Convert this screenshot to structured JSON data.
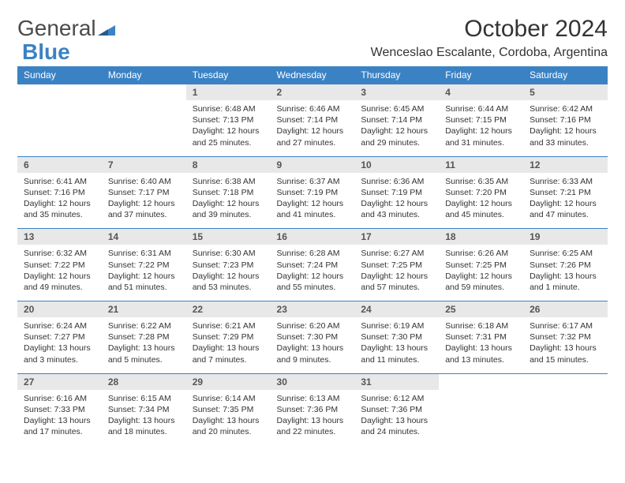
{
  "brand": {
    "text_general": "General",
    "text_blue": "Blue",
    "general_color": "#4a4a4a",
    "blue_color": "#3b82c4",
    "triangle_color": "#3b82c4"
  },
  "title": {
    "month_year": "October 2024",
    "location": "Wenceslao Escalante, Cordoba, Argentina"
  },
  "colors": {
    "header_bg": "#3b82c4",
    "header_text": "#ffffff",
    "daynum_bg": "#e8e8e8",
    "daynum_text": "#555555",
    "body_text": "#333333",
    "row_border": "#3b82c4",
    "page_bg": "#ffffff"
  },
  "weekday_headers": [
    "Sunday",
    "Monday",
    "Tuesday",
    "Wednesday",
    "Thursday",
    "Friday",
    "Saturday"
  ],
  "weeks": [
    [
      {
        "day": "",
        "sunrise": "",
        "sunset": "",
        "daylight": ""
      },
      {
        "day": "",
        "sunrise": "",
        "sunset": "",
        "daylight": ""
      },
      {
        "day": "1",
        "sunrise": "Sunrise: 6:48 AM",
        "sunset": "Sunset: 7:13 PM",
        "daylight": "Daylight: 12 hours and 25 minutes."
      },
      {
        "day": "2",
        "sunrise": "Sunrise: 6:46 AM",
        "sunset": "Sunset: 7:14 PM",
        "daylight": "Daylight: 12 hours and 27 minutes."
      },
      {
        "day": "3",
        "sunrise": "Sunrise: 6:45 AM",
        "sunset": "Sunset: 7:14 PM",
        "daylight": "Daylight: 12 hours and 29 minutes."
      },
      {
        "day": "4",
        "sunrise": "Sunrise: 6:44 AM",
        "sunset": "Sunset: 7:15 PM",
        "daylight": "Daylight: 12 hours and 31 minutes."
      },
      {
        "day": "5",
        "sunrise": "Sunrise: 6:42 AM",
        "sunset": "Sunset: 7:16 PM",
        "daylight": "Daylight: 12 hours and 33 minutes."
      }
    ],
    [
      {
        "day": "6",
        "sunrise": "Sunrise: 6:41 AM",
        "sunset": "Sunset: 7:16 PM",
        "daylight": "Daylight: 12 hours and 35 minutes."
      },
      {
        "day": "7",
        "sunrise": "Sunrise: 6:40 AM",
        "sunset": "Sunset: 7:17 PM",
        "daylight": "Daylight: 12 hours and 37 minutes."
      },
      {
        "day": "8",
        "sunrise": "Sunrise: 6:38 AM",
        "sunset": "Sunset: 7:18 PM",
        "daylight": "Daylight: 12 hours and 39 minutes."
      },
      {
        "day": "9",
        "sunrise": "Sunrise: 6:37 AM",
        "sunset": "Sunset: 7:19 PM",
        "daylight": "Daylight: 12 hours and 41 minutes."
      },
      {
        "day": "10",
        "sunrise": "Sunrise: 6:36 AM",
        "sunset": "Sunset: 7:19 PM",
        "daylight": "Daylight: 12 hours and 43 minutes."
      },
      {
        "day": "11",
        "sunrise": "Sunrise: 6:35 AM",
        "sunset": "Sunset: 7:20 PM",
        "daylight": "Daylight: 12 hours and 45 minutes."
      },
      {
        "day": "12",
        "sunrise": "Sunrise: 6:33 AM",
        "sunset": "Sunset: 7:21 PM",
        "daylight": "Daylight: 12 hours and 47 minutes."
      }
    ],
    [
      {
        "day": "13",
        "sunrise": "Sunrise: 6:32 AM",
        "sunset": "Sunset: 7:22 PM",
        "daylight": "Daylight: 12 hours and 49 minutes."
      },
      {
        "day": "14",
        "sunrise": "Sunrise: 6:31 AM",
        "sunset": "Sunset: 7:22 PM",
        "daylight": "Daylight: 12 hours and 51 minutes."
      },
      {
        "day": "15",
        "sunrise": "Sunrise: 6:30 AM",
        "sunset": "Sunset: 7:23 PM",
        "daylight": "Daylight: 12 hours and 53 minutes."
      },
      {
        "day": "16",
        "sunrise": "Sunrise: 6:28 AM",
        "sunset": "Sunset: 7:24 PM",
        "daylight": "Daylight: 12 hours and 55 minutes."
      },
      {
        "day": "17",
        "sunrise": "Sunrise: 6:27 AM",
        "sunset": "Sunset: 7:25 PM",
        "daylight": "Daylight: 12 hours and 57 minutes."
      },
      {
        "day": "18",
        "sunrise": "Sunrise: 6:26 AM",
        "sunset": "Sunset: 7:25 PM",
        "daylight": "Daylight: 12 hours and 59 minutes."
      },
      {
        "day": "19",
        "sunrise": "Sunrise: 6:25 AM",
        "sunset": "Sunset: 7:26 PM",
        "daylight": "Daylight: 13 hours and 1 minute."
      }
    ],
    [
      {
        "day": "20",
        "sunrise": "Sunrise: 6:24 AM",
        "sunset": "Sunset: 7:27 PM",
        "daylight": "Daylight: 13 hours and 3 minutes."
      },
      {
        "day": "21",
        "sunrise": "Sunrise: 6:22 AM",
        "sunset": "Sunset: 7:28 PM",
        "daylight": "Daylight: 13 hours and 5 minutes."
      },
      {
        "day": "22",
        "sunrise": "Sunrise: 6:21 AM",
        "sunset": "Sunset: 7:29 PM",
        "daylight": "Daylight: 13 hours and 7 minutes."
      },
      {
        "day": "23",
        "sunrise": "Sunrise: 6:20 AM",
        "sunset": "Sunset: 7:30 PM",
        "daylight": "Daylight: 13 hours and 9 minutes."
      },
      {
        "day": "24",
        "sunrise": "Sunrise: 6:19 AM",
        "sunset": "Sunset: 7:30 PM",
        "daylight": "Daylight: 13 hours and 11 minutes."
      },
      {
        "day": "25",
        "sunrise": "Sunrise: 6:18 AM",
        "sunset": "Sunset: 7:31 PM",
        "daylight": "Daylight: 13 hours and 13 minutes."
      },
      {
        "day": "26",
        "sunrise": "Sunrise: 6:17 AM",
        "sunset": "Sunset: 7:32 PM",
        "daylight": "Daylight: 13 hours and 15 minutes."
      }
    ],
    [
      {
        "day": "27",
        "sunrise": "Sunrise: 6:16 AM",
        "sunset": "Sunset: 7:33 PM",
        "daylight": "Daylight: 13 hours and 17 minutes."
      },
      {
        "day": "28",
        "sunrise": "Sunrise: 6:15 AM",
        "sunset": "Sunset: 7:34 PM",
        "daylight": "Daylight: 13 hours and 18 minutes."
      },
      {
        "day": "29",
        "sunrise": "Sunrise: 6:14 AM",
        "sunset": "Sunset: 7:35 PM",
        "daylight": "Daylight: 13 hours and 20 minutes."
      },
      {
        "day": "30",
        "sunrise": "Sunrise: 6:13 AM",
        "sunset": "Sunset: 7:36 PM",
        "daylight": "Daylight: 13 hours and 22 minutes."
      },
      {
        "day": "31",
        "sunrise": "Sunrise: 6:12 AM",
        "sunset": "Sunset: 7:36 PM",
        "daylight": "Daylight: 13 hours and 24 minutes."
      },
      {
        "day": "",
        "sunrise": "",
        "sunset": "",
        "daylight": ""
      },
      {
        "day": "",
        "sunrise": "",
        "sunset": "",
        "daylight": ""
      }
    ]
  ]
}
